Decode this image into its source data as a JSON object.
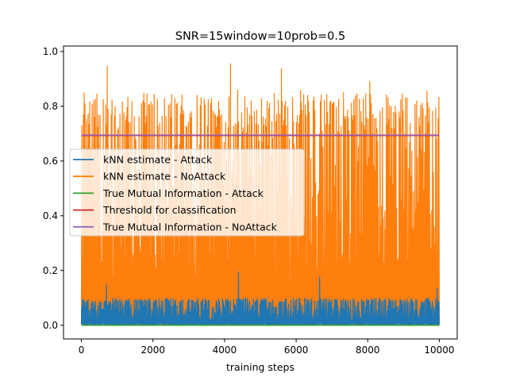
{
  "chart_data": {
    "type": "line",
    "title": "SNR=15window=10prob=0.5",
    "xlabel": "training steps",
    "ylabel": "",
    "xlim": [
      -500,
      10500
    ],
    "ylim": [
      -0.05,
      1.02
    ],
    "xticks": [
      0,
      2000,
      4000,
      6000,
      8000,
      10000
    ],
    "yticks": [
      0.0,
      0.2,
      0.4,
      0.6,
      0.8,
      1.0
    ],
    "xtick_labels": [
      "0",
      "2000",
      "4000",
      "6000",
      "8000",
      "10000"
    ],
    "ytick_labels": [
      "0.0",
      "0.2",
      "0.4",
      "0.6",
      "0.8",
      "1.0"
    ],
    "grid": false,
    "legend_position": "center-left",
    "x_range": [
      0,
      10000
    ],
    "series": [
      {
        "name": "kNN estimate - Attack",
        "color": "#1f77b4",
        "kind": "noisy",
        "description_values": {
          "min": 0.0,
          "typical_max": 0.1,
          "peak_max": 0.2
        }
      },
      {
        "name": "kNN estimate - NoAttack",
        "color": "#ff7f0e",
        "kind": "noisy",
        "description_values": {
          "min": 0.0,
          "typical_max": 0.85,
          "peak_max": 0.97
        }
      },
      {
        "name": "True Mutual Information - Attack",
        "color": "#2ca02c",
        "kind": "constant",
        "value": 0.0
      },
      {
        "name": "Threshold for classification",
        "color": "#d62728",
        "kind": "constant",
        "value": 0.693
      },
      {
        "name": "True Mutual Information - NoAttack",
        "color": "#9467bd",
        "kind": "constant",
        "value": 0.695
      }
    ]
  }
}
